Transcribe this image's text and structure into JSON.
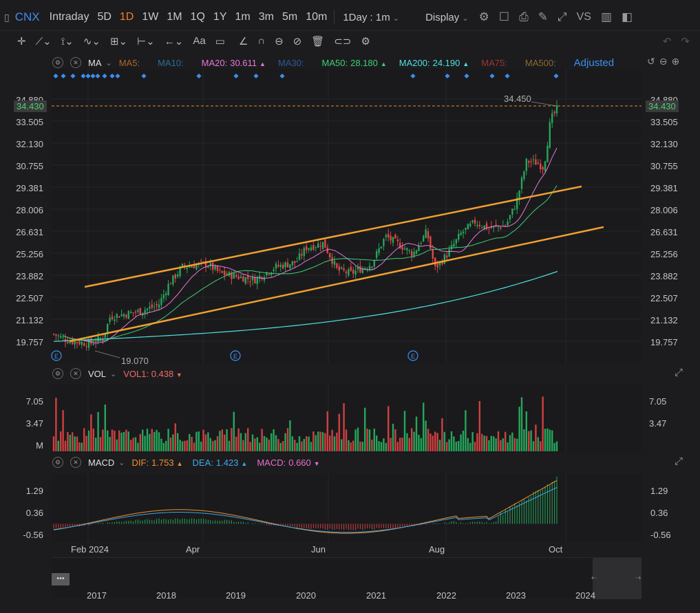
{
  "topbar": {
    "symbol": "CNX",
    "periods": [
      "Intraday",
      "5D",
      "1D",
      "1W",
      "1M",
      "1Q",
      "1Y",
      "1m",
      "3m",
      "5m",
      "10m"
    ],
    "active_period": "1D",
    "interval_dropdown": "1Day : 1m",
    "display_label": "Display",
    "vs_label": "VS"
  },
  "main_legend": {
    "indicator": "MA",
    "items": [
      {
        "label": "MA5:",
        "value": "",
        "color": "#b0662a",
        "arrow": ""
      },
      {
        "label": "MA10:",
        "value": "",
        "color": "#2c6e9a",
        "arrow": ""
      },
      {
        "label": "MA20:",
        "value": "30.611",
        "color": "#e878d8",
        "arrow": "▲"
      },
      {
        "label": "MA30:",
        "value": "",
        "color": "#2d5a9a",
        "arrow": ""
      },
      {
        "label": "MA50:",
        "value": "28.180",
        "color": "#3ecf78",
        "arrow": "▲"
      },
      {
        "label": "MA200:",
        "value": "24.190",
        "color": "#4fe0e0",
        "arrow": "▲"
      },
      {
        "label": "MA75:",
        "value": "",
        "color": "#9a3838",
        "arrow": ""
      },
      {
        "label": "MA500:",
        "value": "",
        "color": "#8a6a30",
        "arrow": ""
      }
    ],
    "adjusted_label": "Adjusted"
  },
  "price_axis": {
    "ticks": [
      "34.880",
      "33.505",
      "32.130",
      "30.755",
      "29.381",
      "28.006",
      "26.631",
      "25.256",
      "23.882",
      "22.507",
      "21.132",
      "19.757"
    ],
    "current_price": "34.430",
    "high_label": "34.450",
    "low_label": "19.070"
  },
  "vol_legend": {
    "indicator": "VOL",
    "label": "VOL1:",
    "value": "0.438",
    "arrow": "▼",
    "color": "#f06a6a",
    "ticks": [
      "7.05",
      "3.47",
      "M"
    ]
  },
  "macd_legend": {
    "indicator": "MACD",
    "items": [
      {
        "label": "DIF:",
        "value": "1.753",
        "color": "#f0902e",
        "arrow": "▲"
      },
      {
        "label": "DEA:",
        "value": "1.423",
        "color": "#3ea8e8",
        "arrow": "▲"
      },
      {
        "label": "MACD:",
        "value": "0.660",
        "color": "#e870d0",
        "arrow": "▼"
      }
    ],
    "ticks": [
      "1.29",
      "0.36",
      "-0.56"
    ]
  },
  "time_axis": [
    "Feb 2024",
    "Apr",
    "Jun",
    "Aug",
    "Oct"
  ],
  "navigator_years": [
    "2017",
    "2018",
    "2019",
    "2020",
    "2021",
    "2022",
    "2023",
    "2024"
  ],
  "chart_data": {
    "type": "candlestick",
    "title": "",
    "ylim": [
      19.0,
      34.9
    ],
    "series": [
      {
        "name": "MA20",
        "color": "#e878d8"
      },
      {
        "name": "MA50",
        "color": "#3ecf78"
      },
      {
        "name": "MA200",
        "color": "#4fe0e0"
      }
    ],
    "channel_lines_color": "#f0a030"
  }
}
